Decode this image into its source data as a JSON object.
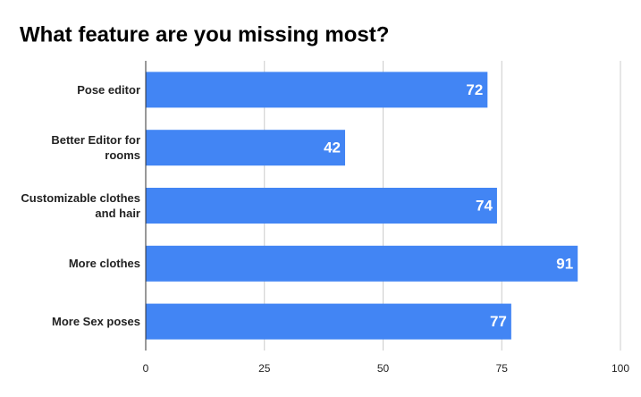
{
  "chart_data": {
    "type": "bar",
    "orientation": "horizontal",
    "title": "What feature are you missing most?",
    "categories": [
      "Pose editor",
      "Better Editor for rooms",
      "Customizable clothes and hair",
      "More clothes",
      "More Sex poses"
    ],
    "values": [
      72,
      42,
      74,
      91,
      77
    ],
    "color": "#4285f4",
    "xlim": [
      0,
      100
    ],
    "xticks": [
      0,
      25,
      50,
      75,
      100
    ],
    "grid": true
  }
}
